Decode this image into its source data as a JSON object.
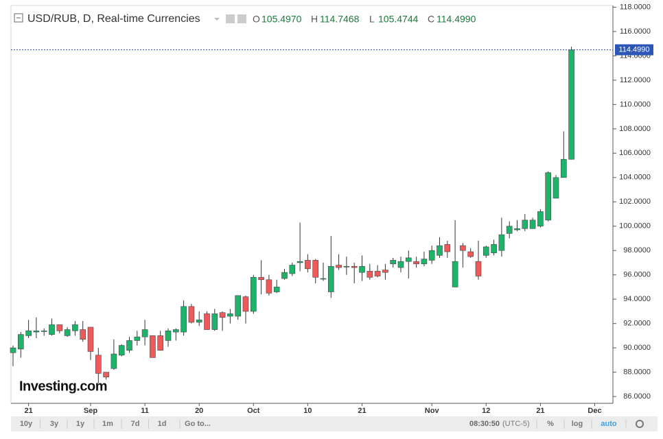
{
  "chart_data": {
    "type": "candlestick",
    "title": "USD/RUB, D, Real-time Currencies",
    "ohlc_header": [
      {
        "key": "O",
        "value": "105.4970"
      },
      {
        "key": "H",
        "value": "114.7468"
      },
      {
        "key": "L",
        "value": "105.4744"
      },
      {
        "key": "C",
        "value": "114.4990"
      }
    ],
    "last_price": {
      "value": 114.499,
      "label": "114.4990"
    },
    "categories": [
      null,
      null,
      "21",
      null,
      null,
      null,
      null,
      null,
      null,
      null,
      "Sep",
      null,
      null,
      null,
      null,
      null,
      null,
      "11",
      null,
      null,
      null,
      null,
      null,
      null,
      "20",
      null,
      null,
      null,
      null,
      null,
      null,
      "Oct",
      null,
      null,
      null,
      null,
      null,
      null,
      "10",
      null,
      null,
      null,
      null,
      null,
      null,
      "21",
      null,
      null,
      null,
      null,
      null,
      null,
      null,
      null,
      "Nov",
      null,
      null,
      null,
      null,
      null,
      null,
      "12",
      null,
      null,
      null,
      null,
      null,
      null,
      "21",
      null,
      null,
      null,
      null,
      null,
      null,
      "Dec",
      null,
      null
    ],
    "open": [
      89.6,
      89.9,
      91.0,
      91.3,
      91.4,
      91.1,
      91.9,
      91.0,
      91.4,
      91.5,
      91.7,
      89.4,
      88.0,
      88.3,
      89.4,
      89.8,
      90.6,
      90.9,
      91.0,
      91.0,
      90.6,
      91.3,
      91.3,
      93.4,
      92.1,
      92.8,
      91.5,
      92.9,
      92.6,
      92.6,
      94.2,
      93.0,
      95.8,
      95.6,
      94.6,
      95.7,
      96.1,
      97.0,
      97.2,
      97.2,
      95.7,
      94.6,
      96.8,
      96.7,
      96.7,
      96.2,
      96.3,
      96.3,
      96.4,
      96.9,
      96.6,
      97.1,
      97.1,
      96.9,
      97.2,
      97.6,
      98.5,
      95.0,
      98.4,
      97.9,
      97.1,
      97.6,
      97.8,
      98.0,
      99.4,
      99.7,
      99.8,
      99.8,
      100.0,
      100.5,
      102.3,
      104.0,
      105.497,
      null,
      null,
      null,
      null,
      null
    ],
    "high": [
      90.2,
      91.3,
      92.3,
      92.5,
      91.6,
      92.4,
      91.9,
      91.7,
      92.2,
      92.2,
      91.7,
      90.0,
      88.0,
      90.7,
      90.3,
      90.9,
      91.4,
      92.3,
      91.0,
      91.4,
      91.6,
      91.6,
      93.9,
      93.6,
      93.0,
      93.0,
      93.2,
      93.0,
      93.2,
      94.3,
      94.3,
      96.0,
      97.2,
      96.0,
      95.6,
      96.5,
      97.0,
      100.3,
      97.7,
      97.3,
      97.0,
      99.2,
      97.7,
      97.5,
      97.0,
      97.6,
      96.9,
      96.8,
      96.9,
      97.4,
      97.5,
      98.0,
      97.5,
      97.9,
      98.4,
      99.1,
      98.8,
      100.5,
      98.6,
      98.2,
      98.8,
      98.4,
      98.9,
      100.7,
      100.4,
      100.5,
      101.0,
      100.7,
      101.4,
      104.5,
      104.2,
      107.8,
      114.7468,
      null,
      null,
      null,
      null,
      null
    ],
    "low": [
      88.5,
      89.2,
      90.8,
      90.8,
      91.0,
      91.0,
      91.2,
      90.9,
      91.0,
      90.5,
      89.0,
      87.1,
      87.4,
      88.2,
      89.3,
      89.6,
      90.2,
      90.2,
      89.2,
      89.8,
      90.1,
      90.6,
      91.0,
      92.0,
      91.8,
      91.5,
      91.4,
      91.4,
      92.0,
      92.3,
      92.0,
      92.8,
      94.4,
      94.3,
      94.5,
      95.6,
      95.9,
      96.3,
      96.2,
      95.3,
      95.5,
      94.1,
      96.4,
      96.0,
      95.3,
      95.5,
      95.6,
      95.8,
      95.6,
      96.6,
      96.2,
      95.7,
      96.6,
      96.7,
      96.9,
      97.4,
      97.4,
      95.0,
      96.6,
      97.4,
      95.6,
      97.4,
      97.6,
      97.5,
      99.0,
      99.6,
      99.6,
      99.8,
      99.9,
      100.4,
      102.3,
      104.0,
      105.4744,
      null,
      null,
      null,
      null,
      null
    ],
    "close": [
      90.0,
      91.1,
      91.4,
      91.4,
      91.4,
      91.9,
      91.4,
      91.5,
      91.9,
      90.7,
      89.7,
      87.9,
      87.6,
      89.5,
      90.2,
      90.6,
      90.9,
      91.5,
      89.2,
      89.8,
      91.4,
      91.5,
      93.4,
      92.1,
      92.3,
      91.5,
      92.8,
      92.5,
      92.8,
      94.3,
      93.0,
      95.8,
      95.6,
      94.5,
      95.0,
      96.2,
      96.8,
      97.1,
      96.5,
      95.8,
      95.7,
      96.7,
      96.6,
      96.7,
      96.6,
      96.7,
      95.8,
      95.9,
      96.2,
      97.2,
      97.1,
      97.4,
      96.9,
      97.3,
      98.0,
      98.4,
      97.9,
      97.1,
      98.0,
      97.5,
      95.9,
      98.3,
      98.5,
      99.3,
      100.0,
      99.8,
      100.5,
      100.5,
      101.2,
      104.4,
      104.0,
      105.5,
      114.499,
      null,
      null,
      null,
      null,
      null
    ],
    "up_color": "#1db46a",
    "down_color": "#ee5a5a",
    "ylim": [
      85.44,
      118.14
    ],
    "yticks": [
      {
        "value": 86,
        "label": "86.0000"
      },
      {
        "value": 88,
        "label": "88.0000"
      },
      {
        "value": 90,
        "label": "90.0000"
      },
      {
        "value": 92,
        "label": "92.0000"
      },
      {
        "value": 94,
        "label": "94.0000"
      },
      {
        "value": 96,
        "label": "96.0000"
      },
      {
        "value": 98,
        "label": "98.0000"
      },
      {
        "value": 100,
        "label": "100.0000"
      },
      {
        "value": 102,
        "label": "102.0000"
      },
      {
        "value": 104,
        "label": "104.0000"
      },
      {
        "value": 106,
        "label": "106.0000"
      },
      {
        "value": 108,
        "label": "108.0000"
      },
      {
        "value": 110,
        "label": "110.0000"
      },
      {
        "value": 112,
        "label": "112.0000"
      },
      {
        "value": 114,
        "label": "114.0000"
      },
      {
        "value": 116,
        "label": "116.0000"
      },
      {
        "value": 118,
        "label": "118.0000"
      }
    ],
    "logo": "Investing.com"
  },
  "toolbar": {
    "ranges": [
      "10y",
      "3y",
      "1y",
      "1m",
      "7d",
      "1d",
      "Go to..."
    ],
    "time": "08:30:50",
    "timezone": "(UTC-5)",
    "options": [
      "%",
      "log",
      "auto"
    ]
  }
}
